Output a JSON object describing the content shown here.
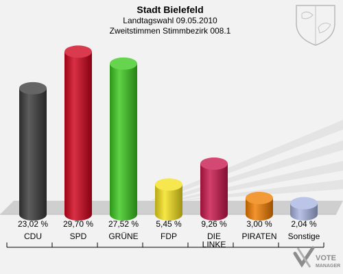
{
  "header": {
    "title": "Stadt Bielefeld",
    "line1": "Landtagswahl 09.05.2010",
    "line2": "Zweitstimmen Stimmbezirk 008.1"
  },
  "watermark": {
    "brand": "VOTE MANAGER"
  },
  "chart_data": {
    "type": "bar",
    "title": "Stadt Bielefeld",
    "subtitle": "Landtagswahl 09.05.2010 / Zweitstimmen Stimmbezirk 008.1",
    "categories": [
      "CDU",
      "SPD",
      "GRÜNE",
      "FDP",
      "DIE LINKE",
      "PIRATEN",
      "Sonstige"
    ],
    "values": [
      23.02,
      29.7,
      27.52,
      5.45,
      9.26,
      3.0,
      2.04
    ],
    "value_labels": [
      "23,02 %",
      "29,70 %",
      "27,52 %",
      "5,45 %",
      "9,26 %",
      "3,00 %",
      "2,04 %"
    ],
    "colors": [
      "#3a3a3a",
      "#d0021b",
      "#3cc81e",
      "#f4e01c",
      "#c8164b",
      "#f07d00",
      "#a8b4e0"
    ],
    "ylim": [
      0,
      30
    ],
    "grid": false,
    "legend": "none"
  }
}
